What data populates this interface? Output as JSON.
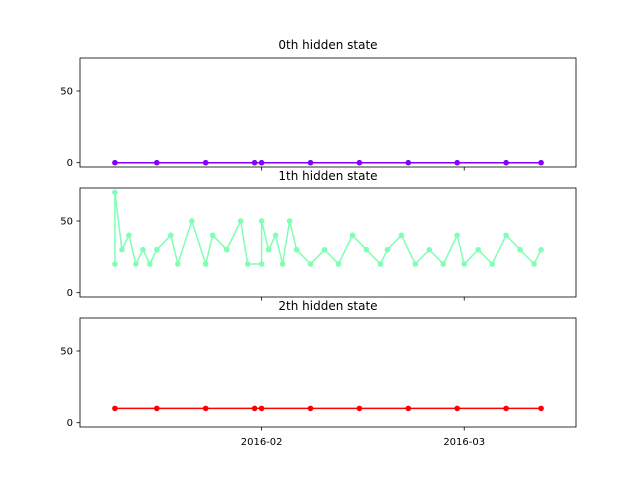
{
  "chart_data": [
    {
      "type": "line",
      "title": "0th hidden state",
      "color": "#8000ff",
      "ylim": [
        -3,
        73
      ],
      "yticks": [
        0,
        50
      ],
      "xlim": [
        "2016-01-06",
        "2016-03-17"
      ],
      "xticks": [
        "2016-02-01",
        "2016-03-01"
      ],
      "x_tick_labels_visible": false,
      "marker": "circle",
      "series": [
        {
          "x": [
            "2016-01-11",
            "2016-01-17",
            "2016-01-24",
            "2016-01-31",
            "2016-02-01",
            "2016-02-08",
            "2016-02-15",
            "2016-02-22",
            "2016-02-29",
            "2016-03-07",
            "2016-03-12"
          ],
          "values": [
            0,
            0,
            0,
            0,
            0,
            0,
            0,
            0,
            0,
            0,
            0
          ]
        }
      ]
    },
    {
      "type": "line",
      "title": "1th hidden state",
      "color": "#80ffb4",
      "ylim": [
        -3,
        73
      ],
      "yticks": [
        0,
        50
      ],
      "xlim": [
        "2016-01-06",
        "2016-03-17"
      ],
      "xticks": [
        "2016-02-01",
        "2016-03-01"
      ],
      "x_tick_labels_visible": false,
      "marker": "circle",
      "series": [
        {
          "x": [
            "2016-01-11",
            "2016-01-11",
            "2016-01-12",
            "2016-01-13",
            "2016-01-14",
            "2016-01-15",
            "2016-01-16",
            "2016-01-17",
            "2016-01-19",
            "2016-01-20",
            "2016-01-22",
            "2016-01-24",
            "2016-01-25",
            "2016-01-27",
            "2016-01-29",
            "2016-01-30",
            "2016-02-01",
            "2016-02-01",
            "2016-02-02",
            "2016-02-03",
            "2016-02-04",
            "2016-02-05",
            "2016-02-06",
            "2016-02-08",
            "2016-02-10",
            "2016-02-12",
            "2016-02-14",
            "2016-02-16",
            "2016-02-18",
            "2016-02-19",
            "2016-02-21",
            "2016-02-23",
            "2016-02-25",
            "2016-02-27",
            "2016-02-29",
            "2016-03-01",
            "2016-03-03",
            "2016-03-05",
            "2016-03-07",
            "2016-03-09",
            "2016-03-11",
            "2016-03-12"
          ],
          "values": [
            20,
            70,
            30,
            40,
            20,
            30,
            20,
            30,
            40,
            20,
            50,
            20,
            40,
            30,
            50,
            20,
            20,
            50,
            30,
            40,
            20,
            50,
            30,
            20,
            30,
            20,
            40,
            30,
            20,
            30,
            40,
            20,
            30,
            20,
            40,
            20,
            30,
            20,
            40,
            30,
            20,
            30
          ]
        }
      ]
    },
    {
      "type": "line",
      "title": "2th hidden state",
      "color": "#ff0000",
      "ylim": [
        -3,
        73
      ],
      "yticks": [
        0,
        50
      ],
      "xlim": [
        "2016-01-06",
        "2016-03-17"
      ],
      "xticks": [
        "2016-02-01",
        "2016-03-01"
      ],
      "xtick_labels": [
        "2016-02",
        "2016-03"
      ],
      "x_tick_labels_visible": true,
      "marker": "circle",
      "series": [
        {
          "x": [
            "2016-01-11",
            "2016-01-17",
            "2016-01-24",
            "2016-01-31",
            "2016-02-01",
            "2016-02-08",
            "2016-02-15",
            "2016-02-22",
            "2016-02-29",
            "2016-03-07",
            "2016-03-12"
          ],
          "values": [
            10,
            10,
            10,
            10,
            10,
            10,
            10,
            10,
            10,
            10,
            10
          ]
        }
      ]
    }
  ]
}
